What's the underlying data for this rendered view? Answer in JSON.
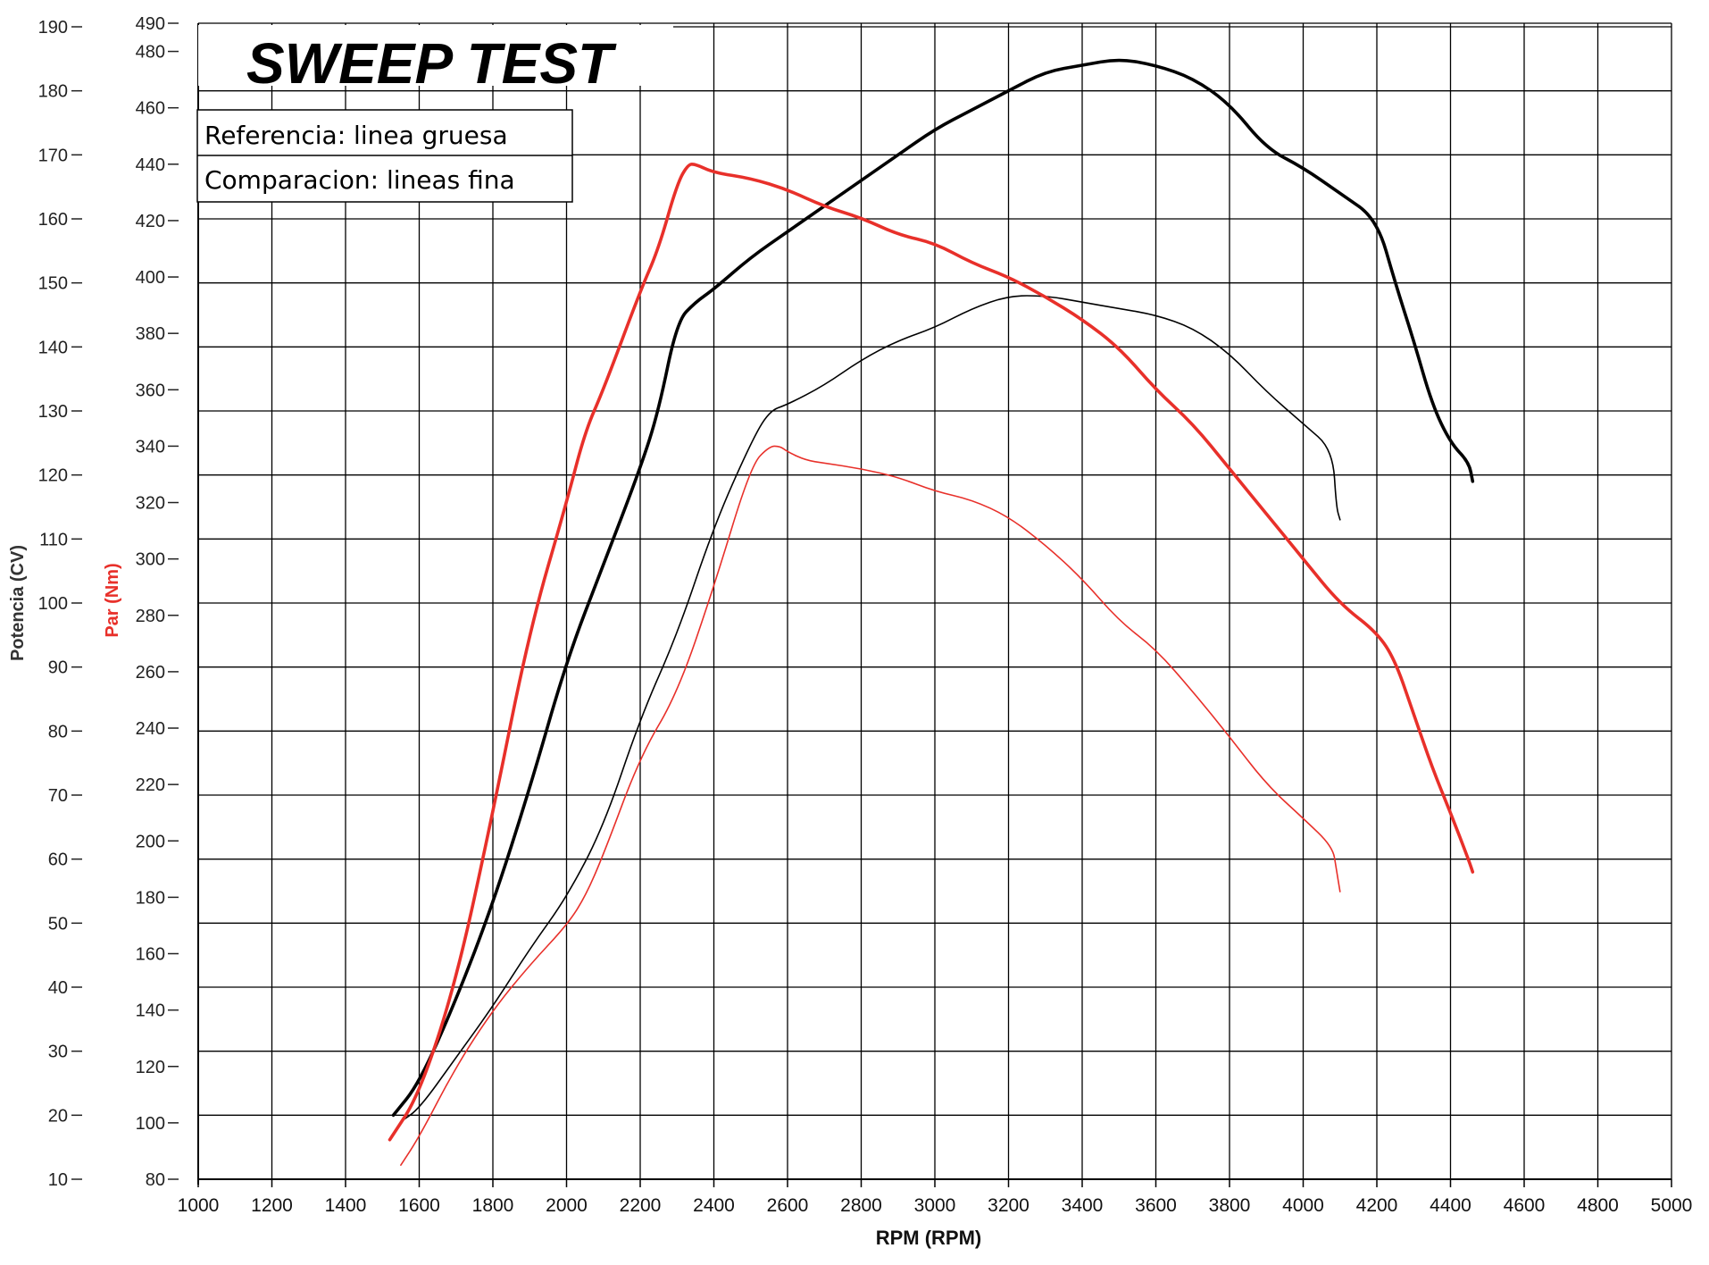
{
  "chart_data": {
    "type": "line",
    "title": "SWEEP TEST",
    "xlabel": "RPM (RPM)",
    "ylabel_left": "Potencia (CV)",
    "ylabel_right": "Par (Nm)",
    "xlim": [
      1000,
      5000
    ],
    "ylim_power": [
      10,
      190
    ],
    "ylim_torque": [
      80,
      490
    ],
    "x_ticks": [
      1000,
      1200,
      1400,
      1600,
      1800,
      2000,
      2200,
      2400,
      2600,
      2800,
      3000,
      3200,
      3400,
      3600,
      3800,
      4000,
      4200,
      4400,
      4600,
      4800,
      5000
    ],
    "power_ticks": [
      10,
      20,
      30,
      40,
      50,
      60,
      70,
      80,
      90,
      100,
      110,
      120,
      130,
      140,
      150,
      160,
      170,
      180,
      190
    ],
    "torque_ticks": [
      80,
      100,
      120,
      140,
      160,
      180,
      200,
      220,
      240,
      260,
      280,
      300,
      320,
      340,
      360,
      380,
      400,
      420,
      440,
      460,
      480,
      490
    ],
    "grid": true,
    "legend": {
      "position": "top-left",
      "entries": [
        "Referencia: linea gruesa",
        "Comparacion: lineas fina"
      ]
    },
    "colors": {
      "power": "#000000",
      "torque": "#e8302a"
    },
    "series": [
      {
        "axis": "power",
        "style": "thick",
        "color": "#000000",
        "x": [
          1530,
          1600,
          1700,
          1800,
          1900,
          2000,
          2100,
          2200,
          2250,
          2300,
          2350,
          2400,
          2500,
          2600,
          2700,
          2800,
          2900,
          3000,
          3100,
          3200,
          3300,
          3400,
          3500,
          3600,
          3700,
          3800,
          3900,
          4000,
          4100,
          4200,
          4250,
          4300,
          4350,
          4400,
          4450,
          4460
        ],
        "y": [
          20,
          25,
          38,
          53,
          71,
          91,
          106,
          121,
          130,
          144,
          147,
          149,
          154,
          158,
          162,
          166,
          170,
          174,
          177,
          180,
          183,
          184,
          185,
          184,
          182,
          178,
          171,
          168,
          164,
          160,
          150,
          141,
          131,
          125,
          122,
          119
        ]
      },
      {
        "axis": "power",
        "style": "thin",
        "color": "#000000",
        "x": [
          1550,
          1600,
          1700,
          1800,
          1900,
          2000,
          2100,
          2200,
          2300,
          2400,
          2500,
          2550,
          2600,
          2700,
          2800,
          2900,
          3000,
          3100,
          3200,
          3300,
          3400,
          3500,
          3600,
          3700,
          3800,
          3900,
          4000,
          4080,
          4090,
          4100
        ],
        "y": [
          19,
          21,
          29,
          37,
          46,
          54,
          65,
          82,
          95,
          112,
          125,
          130,
          131,
          134,
          138,
          141,
          143,
          146,
          148,
          148,
          147,
          146,
          145,
          143,
          139,
          133,
          128,
          124,
          115,
          113
        ]
      },
      {
        "axis": "torque",
        "style": "thick",
        "color": "#e8302a",
        "x": [
          1520,
          1600,
          1700,
          1800,
          1900,
          2000,
          2050,
          2100,
          2200,
          2250,
          2300,
          2330,
          2350,
          2400,
          2500,
          2600,
          2700,
          2800,
          2900,
          3000,
          3100,
          3200,
          3300,
          3400,
          3500,
          3600,
          3700,
          3800,
          3900,
          4000,
          4100,
          4200,
          4250,
          4300,
          4350,
          4400,
          4450,
          4460
        ],
        "y": [
          94,
          110,
          150,
          210,
          275,
          320,
          345,
          360,
          395,
          410,
          433,
          440,
          440,
          437,
          435,
          431,
          425,
          421,
          415,
          412,
          405,
          400,
          393,
          385,
          375,
          360,
          348,
          332,
          316,
          300,
          284,
          274,
          264,
          245,
          226,
          210,
          193,
          189
        ]
      },
      {
        "axis": "torque",
        "style": "thin",
        "color": "#e8302a",
        "x": [
          1550,
          1600,
          1700,
          1800,
          1900,
          2000,
          2050,
          2100,
          2200,
          2300,
          2400,
          2500,
          2550,
          2580,
          2600,
          2650,
          2700,
          2800,
          2900,
          3000,
          3100,
          3200,
          3300,
          3400,
          3500,
          3600,
          3700,
          3800,
          3900,
          4000,
          4080,
          4090,
          4100
        ],
        "y": [
          85,
          95,
          120,
          140,
          156,
          170,
          180,
          195,
          230,
          252,
          290,
          333,
          340,
          340,
          338,
          335,
          334,
          332,
          329,
          324,
          321,
          315,
          305,
          293,
          278,
          268,
          253,
          237,
          220,
          208,
          198,
          190,
          182
        ]
      }
    ]
  }
}
